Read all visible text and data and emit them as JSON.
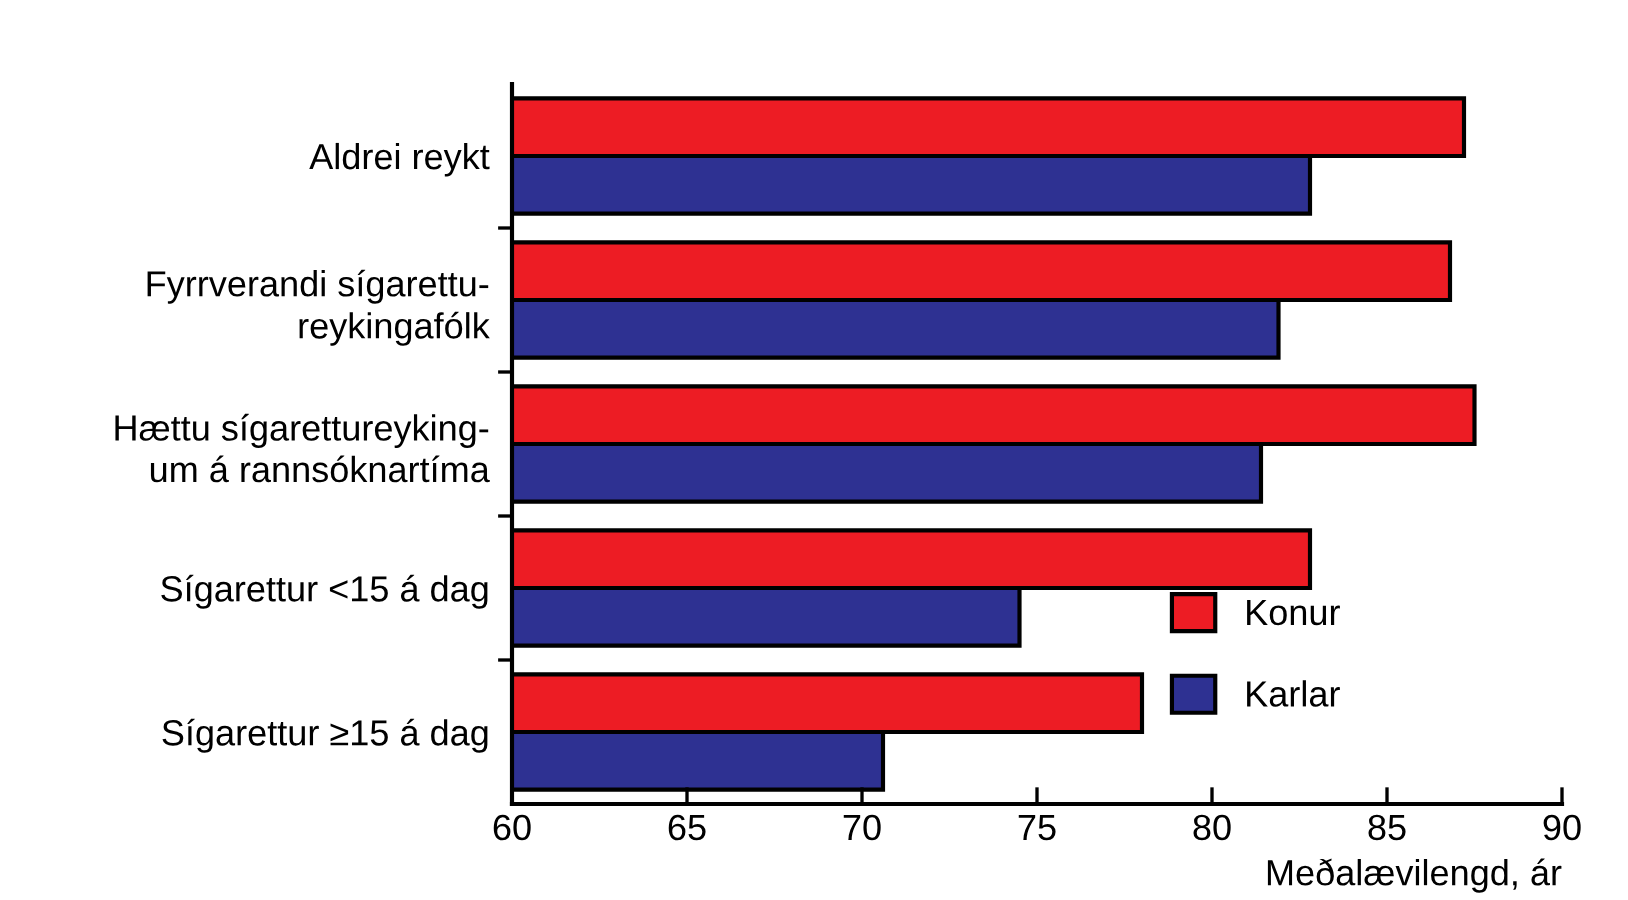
{
  "chart_data": {
    "type": "bar",
    "orientation": "horizontal",
    "categories": [
      "Aldrei reykt",
      "Fyrrverandi sígarettu-\nreykingafólk",
      "Hættu sígarettureyking-\num á rannsóknartíma",
      "Sígarettur <15 á dag",
      "Sígarettur ≥15 á dag"
    ],
    "series": [
      {
        "name": "Konur",
        "color": "#ed1c24",
        "values": [
          87.2,
          86.8,
          87.5,
          82.8,
          78.0
        ]
      },
      {
        "name": "Karlar",
        "color": "#2e3192",
        "values": [
          82.8,
          81.9,
          81.4,
          74.5,
          70.6
        ]
      }
    ],
    "xlabel": "Meðalævilengd, ár",
    "xlim": [
      60,
      90
    ],
    "xticks": [
      60,
      65,
      70,
      75,
      80,
      85,
      90
    ],
    "grid": false,
    "legend": "bottom right"
  }
}
